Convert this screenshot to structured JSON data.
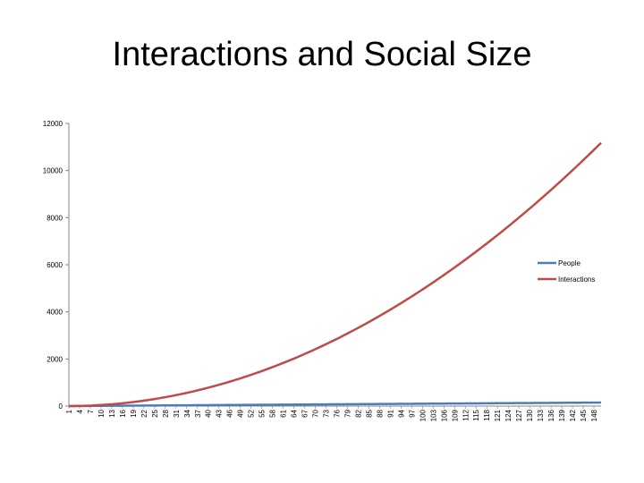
{
  "chart_data": {
    "type": "line",
    "title": "Interactions and Social Size",
    "xlabel": "",
    "ylabel": "",
    "x_range": [
      1,
      150
    ],
    "x_tick_start": 1,
    "x_tick_step": 3,
    "x_tick_end": 148,
    "ylim": [
      0,
      12000
    ],
    "yticks": [
      0,
      2000,
      4000,
      6000,
      8000,
      10000,
      12000
    ],
    "grid": false,
    "legend_position": "right",
    "series": [
      {
        "name": "People",
        "formula": "n",
        "color": "#4a7ebb",
        "sample_values": {
          "1": 1,
          "50": 50,
          "100": 100,
          "150": 150
        }
      },
      {
        "name": "Interactions",
        "formula": "n*(n-1)/2",
        "color": "#be4b48",
        "sample_values": {
          "1": 0,
          "50": 1225,
          "100": 4950,
          "150": 11175
        }
      }
    ]
  }
}
